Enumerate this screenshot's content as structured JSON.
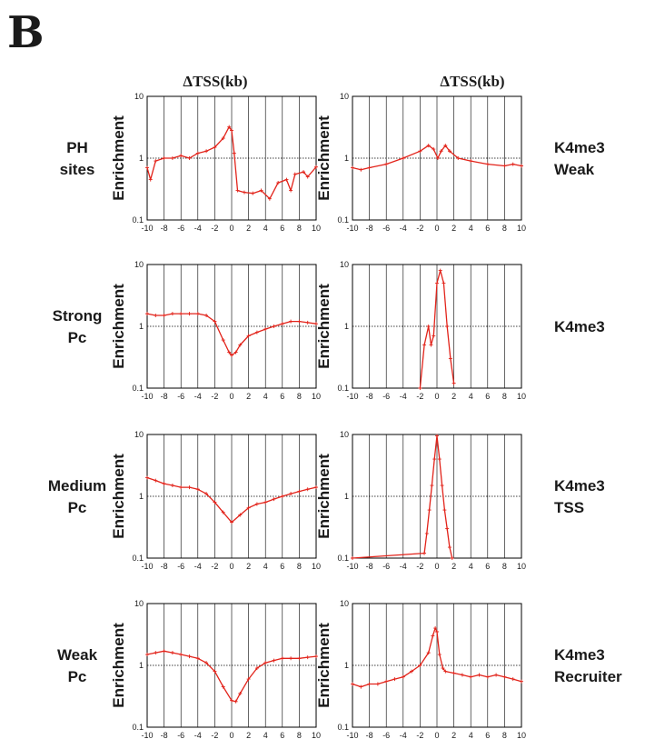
{
  "panel_letter": "B",
  "column_headers": [
    "ΔTSS(kb)",
    "ΔTSS(kb)"
  ],
  "row_labels": [
    [
      "PH",
      "sites"
    ],
    [
      "Strong",
      "Pc"
    ],
    [
      "Medium",
      "Pc"
    ],
    [
      "Weak",
      "Pc"
    ]
  ],
  "right_labels": [
    [
      "K4me3",
      "Weak"
    ],
    [
      "K4me3"
    ],
    [
      "K4me3",
      "TSS"
    ],
    [
      "K4me3",
      "Recruiter"
    ]
  ],
  "colors": {
    "series": "#e2231a",
    "axis": "#000000",
    "grid": "#000000"
  },
  "chart_data": [
    {
      "type": "line",
      "ylabel": "Enrichment",
      "yscale": "log",
      "xlim": [
        -10,
        10
      ],
      "ylim": [
        0.1,
        10
      ],
      "x_ticks": [
        -10,
        -8,
        -6,
        -4,
        -2,
        0,
        2,
        4,
        6,
        8,
        10
      ],
      "y_ticks": [
        "10",
        "1",
        "0.1"
      ],
      "series": [
        {
          "points": [
            [
              -10,
              0.7
            ],
            [
              -9.6,
              0.45
            ],
            [
              -9,
              0.9
            ],
            [
              -8,
              1.0
            ],
            [
              -7,
              1.0
            ],
            [
              -6,
              1.1
            ],
            [
              -5,
              1.0
            ],
            [
              -4,
              1.2
            ],
            [
              -3,
              1.3
            ],
            [
              -2,
              1.5
            ],
            [
              -1,
              2.1
            ],
            [
              -0.3,
              3.2
            ],
            [
              0,
              2.8
            ],
            [
              0.3,
              1.2
            ],
            [
              0.7,
              0.3
            ],
            [
              1.5,
              0.28
            ],
            [
              2.5,
              0.27
            ],
            [
              3.5,
              0.3
            ],
            [
              4.5,
              0.22
            ],
            [
              5.5,
              0.4
            ],
            [
              6.5,
              0.45
            ],
            [
              7,
              0.3
            ],
            [
              7.5,
              0.55
            ],
            [
              8.5,
              0.6
            ],
            [
              9,
              0.5
            ],
            [
              10,
              0.72
            ]
          ]
        }
      ]
    },
    {
      "type": "line",
      "ylabel": "Enrichment",
      "yscale": "log",
      "xlim": [
        -10,
        10
      ],
      "ylim": [
        0.1,
        10
      ],
      "x_ticks": [
        -10,
        -8,
        -6,
        -4,
        -2,
        0,
        2,
        4,
        6,
        8,
        10
      ],
      "y_ticks": [
        "10",
        "1",
        "0.1"
      ],
      "series": [
        {
          "points": [
            [
              -10,
              0.7
            ],
            [
              -9,
              0.65
            ],
            [
              -8,
              0.7
            ],
            [
              -6,
              0.8
            ],
            [
              -4,
              1.0
            ],
            [
              -2,
              1.3
            ],
            [
              -1,
              1.6
            ],
            [
              -0.4,
              1.4
            ],
            [
              0.1,
              1.0
            ],
            [
              0.5,
              1.3
            ],
            [
              1,
              1.6
            ],
            [
              1.5,
              1.3
            ],
            [
              2.5,
              1.0
            ],
            [
              4,
              0.9
            ],
            [
              6,
              0.8
            ],
            [
              8,
              0.75
            ],
            [
              9,
              0.8
            ],
            [
              10,
              0.75
            ]
          ]
        }
      ]
    },
    {
      "type": "line",
      "ylabel": "Enrichment",
      "yscale": "log",
      "xlim": [
        -10,
        10
      ],
      "ylim": [
        0.1,
        10
      ],
      "x_ticks": [
        -10,
        -8,
        -6,
        -4,
        -2,
        0,
        2,
        4,
        6,
        8,
        10
      ],
      "y_ticks": [
        "10",
        "1",
        "0.1"
      ],
      "series": [
        {
          "points": [
            [
              -10,
              1.6
            ],
            [
              -9,
              1.5
            ],
            [
              -8,
              1.5
            ],
            [
              -7,
              1.6
            ],
            [
              -6,
              1.6
            ],
            [
              -5,
              1.6
            ],
            [
              -4,
              1.6
            ],
            [
              -3,
              1.5
            ],
            [
              -2,
              1.2
            ],
            [
              -1,
              0.6
            ],
            [
              -0.3,
              0.38
            ],
            [
              0,
              0.34
            ],
            [
              0.5,
              0.38
            ],
            [
              1,
              0.5
            ],
            [
              2,
              0.7
            ],
            [
              3,
              0.8
            ],
            [
              4,
              0.9
            ],
            [
              5,
              1.0
            ],
            [
              6,
              1.1
            ],
            [
              7,
              1.2
            ],
            [
              8,
              1.2
            ],
            [
              9,
              1.15
            ],
            [
              10,
              1.1
            ]
          ]
        }
      ]
    },
    {
      "type": "line",
      "ylabel": "Enrichment",
      "yscale": "log",
      "xlim": [
        -10,
        10
      ],
      "ylim": [
        0.1,
        10
      ],
      "x_ticks": [
        -10,
        -8,
        -6,
        -4,
        -2,
        0,
        2,
        4,
        6,
        8,
        10
      ],
      "y_ticks": [
        "10",
        "1",
        "0.1"
      ],
      "series": [
        {
          "points": [
            [
              -2,
              0.1
            ],
            [
              -1.5,
              0.5
            ],
            [
              -1,
              1.0
            ],
            [
              -0.7,
              0.5
            ],
            [
              -0.4,
              0.7
            ],
            [
              0,
              5.0
            ],
            [
              0.4,
              8.0
            ],
            [
              0.8,
              5.0
            ],
            [
              1.2,
              1.0
            ],
            [
              1.6,
              0.3
            ],
            [
              2,
              0.12
            ]
          ]
        }
      ]
    },
    {
      "type": "line",
      "ylabel": "Enrichment",
      "yscale": "log",
      "xlim": [
        -10,
        10
      ],
      "ylim": [
        0.1,
        10
      ],
      "x_ticks": [
        -10,
        -8,
        -6,
        -4,
        -2,
        0,
        2,
        4,
        6,
        8,
        10
      ],
      "y_ticks": [
        "10",
        "1",
        "0.1"
      ],
      "series": [
        {
          "points": [
            [
              -10,
              2.0
            ],
            [
              -9,
              1.8
            ],
            [
              -8,
              1.6
            ],
            [
              -7,
              1.5
            ],
            [
              -6,
              1.4
            ],
            [
              -5,
              1.4
            ],
            [
              -4,
              1.3
            ],
            [
              -3,
              1.1
            ],
            [
              -2,
              0.8
            ],
            [
              -1,
              0.55
            ],
            [
              0,
              0.38
            ],
            [
              1,
              0.5
            ],
            [
              2,
              0.65
            ],
            [
              3,
              0.75
            ],
            [
              4,
              0.8
            ],
            [
              5,
              0.9
            ],
            [
              6,
              1.0
            ],
            [
              7,
              1.1
            ],
            [
              8,
              1.2
            ],
            [
              9,
              1.3
            ],
            [
              10,
              1.4
            ]
          ]
        }
      ]
    },
    {
      "type": "line",
      "ylabel": "Enrichment",
      "yscale": "log",
      "xlim": [
        -10,
        10
      ],
      "ylim": [
        0.1,
        10
      ],
      "x_ticks": [
        -10,
        -8,
        -6,
        -4,
        -2,
        0,
        2,
        4,
        6,
        8,
        10
      ],
      "y_ticks": [
        "10",
        "1",
        "0.1"
      ],
      "series": [
        {
          "points": [
            [
              -10,
              0.1
            ],
            [
              -1.5,
              0.12
            ],
            [
              -1.2,
              0.25
            ],
            [
              -0.9,
              0.6
            ],
            [
              -0.6,
              1.5
            ],
            [
              -0.3,
              4.0
            ],
            [
              0,
              9.5
            ],
            [
              0.3,
              4.0
            ],
            [
              0.6,
              1.5
            ],
            [
              0.9,
              0.6
            ],
            [
              1.2,
              0.3
            ],
            [
              1.5,
              0.15
            ],
            [
              1.8,
              0.1
            ]
          ]
        }
      ]
    },
    {
      "type": "line",
      "ylabel": "Enrichment",
      "yscale": "log",
      "xlim": [
        -10,
        10
      ],
      "ylim": [
        0.1,
        10
      ],
      "x_ticks": [
        -10,
        -8,
        -6,
        -4,
        -2,
        0,
        2,
        4,
        6,
        8,
        10
      ],
      "y_ticks": [
        "10",
        "1",
        "0.1"
      ],
      "series": [
        {
          "points": [
            [
              -10,
              1.5
            ],
            [
              -9,
              1.6
            ],
            [
              -8,
              1.7
            ],
            [
              -7,
              1.6
            ],
            [
              -6,
              1.5
            ],
            [
              -5,
              1.4
            ],
            [
              -4,
              1.3
            ],
            [
              -3,
              1.1
            ],
            [
              -2,
              0.8
            ],
            [
              -1,
              0.45
            ],
            [
              0,
              0.27
            ],
            [
              0.5,
              0.26
            ],
            [
              1,
              0.35
            ],
            [
              2,
              0.6
            ],
            [
              3,
              0.9
            ],
            [
              4,
              1.1
            ],
            [
              5,
              1.2
            ],
            [
              6,
              1.3
            ],
            [
              7,
              1.3
            ],
            [
              8,
              1.3
            ],
            [
              9,
              1.35
            ],
            [
              10,
              1.4
            ]
          ]
        }
      ]
    },
    {
      "type": "line",
      "ylabel": "Enrichment",
      "yscale": "log",
      "xlim": [
        -10,
        10
      ],
      "ylim": [
        0.1,
        10
      ],
      "x_ticks": [
        -10,
        -8,
        -6,
        -4,
        -2,
        0,
        2,
        4,
        6,
        8,
        10
      ],
      "y_ticks": [
        "10",
        "1",
        "0.1"
      ],
      "series": [
        {
          "points": [
            [
              -10,
              0.5
            ],
            [
              -9,
              0.45
            ],
            [
              -8,
              0.5
            ],
            [
              -7,
              0.5
            ],
            [
              -6,
              0.55
            ],
            [
              -5,
              0.6
            ],
            [
              -4,
              0.65
            ],
            [
              -3,
              0.8
            ],
            [
              -2,
              1.0
            ],
            [
              -1,
              1.6
            ],
            [
              -0.5,
              3.0
            ],
            [
              -0.2,
              4.0
            ],
            [
              0,
              3.5
            ],
            [
              0.3,
              1.5
            ],
            [
              0.7,
              0.9
            ],
            [
              1,
              0.8
            ],
            [
              2,
              0.75
            ],
            [
              3,
              0.7
            ],
            [
              4,
              0.65
            ],
            [
              5,
              0.7
            ],
            [
              6,
              0.65
            ],
            [
              7,
              0.7
            ],
            [
              8,
              0.65
            ],
            [
              9,
              0.6
            ],
            [
              10,
              0.55
            ]
          ]
        }
      ]
    }
  ]
}
